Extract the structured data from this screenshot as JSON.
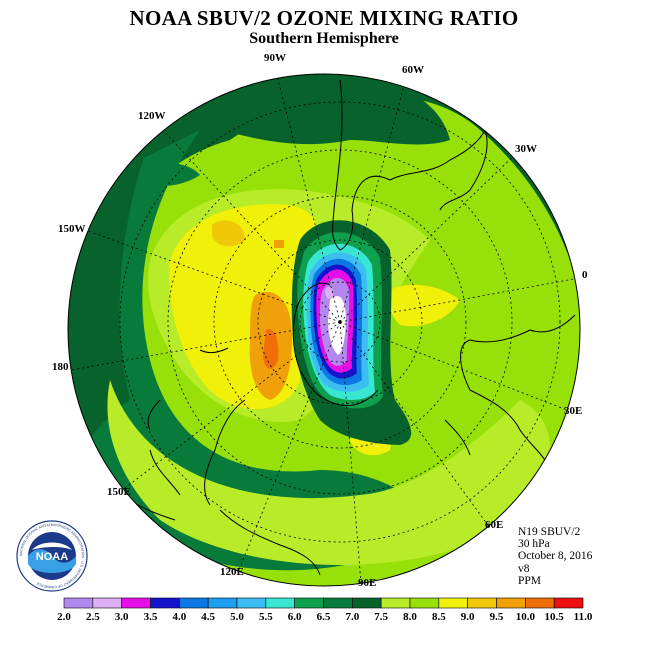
{
  "title": "NOAA SBUV/2 OZONE MIXING RATIO",
  "subtitle": "Southern Hemisphere",
  "longitude_labels": [
    {
      "key": "90W",
      "label": "90W"
    },
    {
      "key": "60W",
      "label": "60W"
    },
    {
      "key": "30W",
      "label": "30W"
    },
    {
      "key": "0",
      "label": "0"
    },
    {
      "key": "30E",
      "label": "30E"
    },
    {
      "key": "60E",
      "label": "60E"
    },
    {
      "key": "90E",
      "label": "90E"
    },
    {
      "key": "120E",
      "label": "120E"
    },
    {
      "key": "150E",
      "label": "150E"
    },
    {
      "key": "180",
      "label": "180"
    },
    {
      "key": "150W",
      "label": "150W"
    },
    {
      "key": "120W",
      "label": "120W"
    }
  ],
  "info": {
    "instrument": "N19 SBUV/2",
    "level": "30 hPa",
    "date": "October 8, 2016",
    "version": "v8",
    "units": "PPM"
  },
  "logo": {
    "text": "NOAA",
    "ring_text": "NATIONAL OCEANIC AND ATMOSPHERIC ADMINISTRATION · U.S. DEPARTMENT OF COMMERCE"
  },
  "colorbar": {
    "ticks": [
      "2.0",
      "2.5",
      "3.0",
      "3.5",
      "4.0",
      "4.5",
      "5.0",
      "5.5",
      "6.0",
      "6.5",
      "7.0",
      "7.5",
      "8.0",
      "8.5",
      "9.0",
      "9.5",
      "10.0",
      "10.5",
      "11.0"
    ],
    "colors": [
      "#b487ee",
      "#ddb0f5",
      "#e60ee6",
      "#1414cc",
      "#0c78e6",
      "#1e9ef0",
      "#3cbef2",
      "#38e6d2",
      "#0fa04e",
      "#087a3a",
      "#07622c",
      "#b8ec28",
      "#98e00a",
      "#f0f008",
      "#f0c808",
      "#f0a008",
      "#f06e08",
      "#ee1010",
      "#7a4a34"
    ]
  }
}
